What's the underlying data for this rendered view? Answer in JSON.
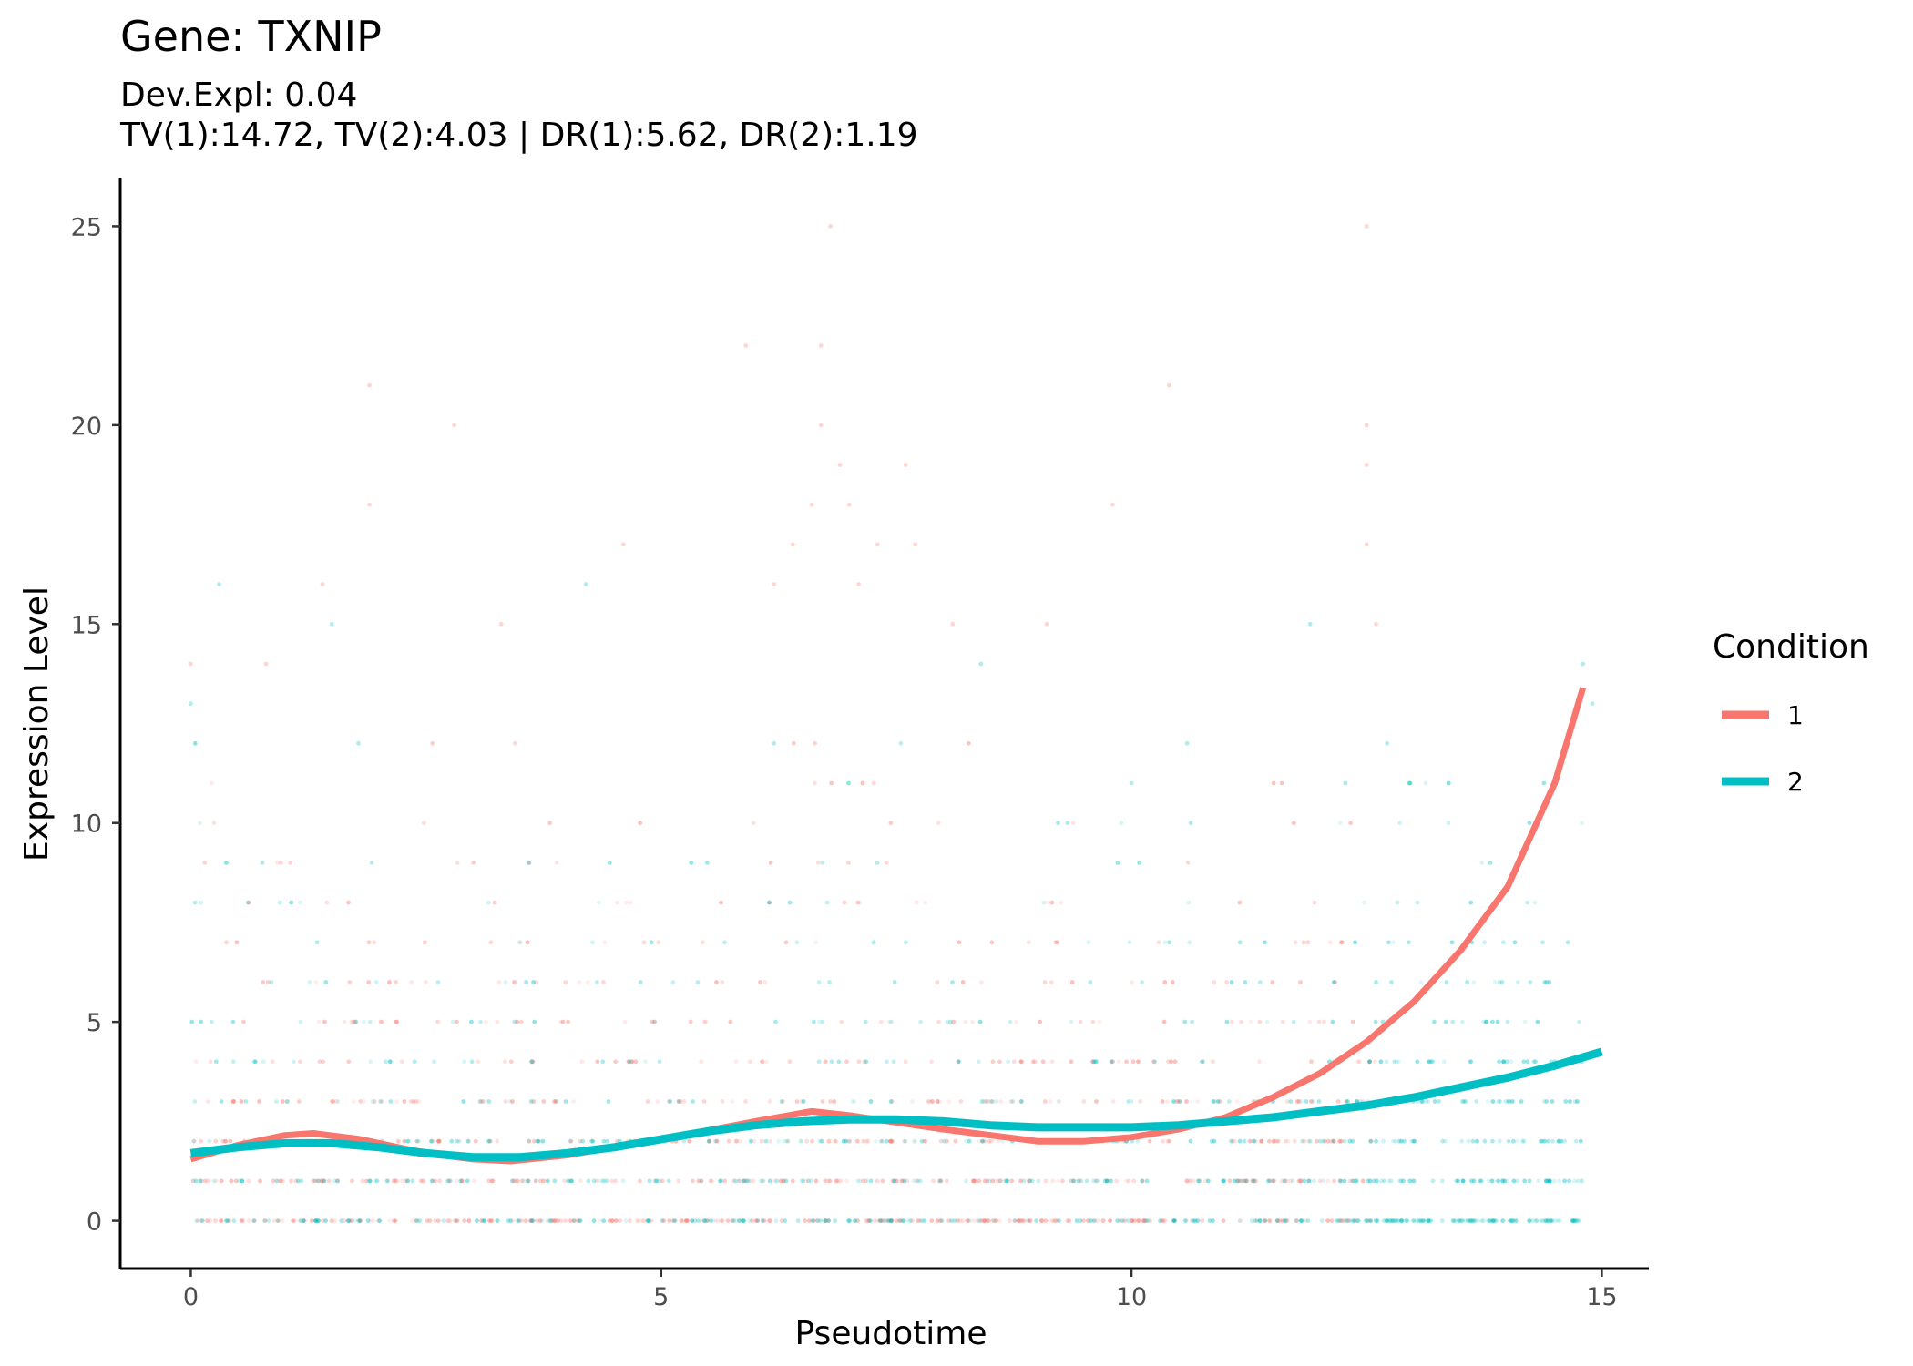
{
  "chart_data": {
    "type": "scatter",
    "title": "Gene: TXNIP",
    "subtitle_lines": [
      "Dev.Expl: 0.04",
      "TV(1):14.72, TV(2):4.03 | DR(1):5.62, DR(2):1.19"
    ],
    "xlabel": "Pseudotime",
    "ylabel": "Expression Level",
    "xlim": [
      -0.75,
      15.5
    ],
    "ylim": [
      -1.2,
      26.2
    ],
    "x_ticks": [
      0,
      5,
      10,
      15
    ],
    "y_ticks": [
      0,
      5,
      10,
      15,
      20,
      25
    ],
    "grid": false,
    "legend": {
      "title": "Condition",
      "position": "right",
      "entries": [
        {
          "label": "1",
          "color": "#F8766D"
        },
        {
          "label": "2",
          "color": "#00BFC4"
        }
      ]
    },
    "series": [
      {
        "name": "1",
        "color": "#F8766D",
        "fit_curve": {
          "x": [
            0.0,
            0.5,
            1.0,
            1.3,
            1.8,
            2.5,
            3.0,
            3.4,
            4.0,
            5.0,
            6.0,
            6.6,
            7.0,
            8.0,
            9.0,
            9.5,
            10.0,
            10.5,
            11.0,
            11.5,
            12.0,
            12.5,
            13.0,
            13.5,
            14.0,
            14.5,
            14.8
          ],
          "y": [
            1.55,
            1.9,
            2.15,
            2.2,
            2.05,
            1.7,
            1.55,
            1.5,
            1.65,
            2.05,
            2.5,
            2.75,
            2.65,
            2.3,
            2.0,
            2.0,
            2.1,
            2.3,
            2.6,
            3.1,
            3.7,
            4.5,
            5.5,
            6.8,
            8.4,
            11.0,
            13.4
          ]
        },
        "upper_outliers": [
          {
            "x": 0.0,
            "y": 14
          },
          {
            "x": 0.8,
            "y": 14
          },
          {
            "x": 1.4,
            "y": 16
          },
          {
            "x": 1.9,
            "y": 21
          },
          {
            "x": 1.9,
            "y": 18
          },
          {
            "x": 2.8,
            "y": 20
          },
          {
            "x": 3.3,
            "y": 15
          },
          {
            "x": 4.6,
            "y": 17
          },
          {
            "x": 5.9,
            "y": 22
          },
          {
            "x": 6.2,
            "y": 16
          },
          {
            "x": 6.4,
            "y": 17
          },
          {
            "x": 6.6,
            "y": 18
          },
          {
            "x": 6.7,
            "y": 20
          },
          {
            "x": 6.7,
            "y": 22
          },
          {
            "x": 6.8,
            "y": 25
          },
          {
            "x": 6.9,
            "y": 19
          },
          {
            "x": 7.0,
            "y": 18
          },
          {
            "x": 7.1,
            "y": 16
          },
          {
            "x": 7.3,
            "y": 17
          },
          {
            "x": 7.6,
            "y": 19
          },
          {
            "x": 7.7,
            "y": 17
          },
          {
            "x": 8.1,
            "y": 15
          },
          {
            "x": 9.1,
            "y": 15
          },
          {
            "x": 9.8,
            "y": 18
          },
          {
            "x": 10.4,
            "y": 21
          },
          {
            "x": 12.5,
            "y": 25
          },
          {
            "x": 12.5,
            "y": 20
          },
          {
            "x": 12.5,
            "y": 19
          },
          {
            "x": 12.5,
            "y": 17
          },
          {
            "x": 12.6,
            "y": 15
          }
        ]
      },
      {
        "name": "2",
        "color": "#00BFC4",
        "fit_curve": {
          "x": [
            0.0,
            0.5,
            1.0,
            1.5,
            2.0,
            2.5,
            3.0,
            3.5,
            4.0,
            4.5,
            5.0,
            5.5,
            6.0,
            6.5,
            7.0,
            7.5,
            8.0,
            8.5,
            9.0,
            9.5,
            10.0,
            10.5,
            11.0,
            11.5,
            12.0,
            12.5,
            13.0,
            13.5,
            14.0,
            14.5,
            15.0
          ],
          "y": [
            1.7,
            1.85,
            1.95,
            1.95,
            1.85,
            1.7,
            1.6,
            1.6,
            1.7,
            1.85,
            2.05,
            2.25,
            2.4,
            2.5,
            2.55,
            2.55,
            2.5,
            2.4,
            2.35,
            2.35,
            2.35,
            2.4,
            2.5,
            2.6,
            2.75,
            2.9,
            3.1,
            3.35,
            3.6,
            3.9,
            4.25
          ]
        },
        "upper_outliers": [
          {
            "x": 0.0,
            "y": 13
          },
          {
            "x": 0.3,
            "y": 16
          },
          {
            "x": 1.5,
            "y": 15
          },
          {
            "x": 4.2,
            "y": 16
          },
          {
            "x": 6.2,
            "y": 12
          },
          {
            "x": 8.4,
            "y": 14
          },
          {
            "x": 10.0,
            "y": 11
          },
          {
            "x": 11.9,
            "y": 15
          },
          {
            "x": 14.8,
            "y": 14
          },
          {
            "x": 14.9,
            "y": 13
          }
        ]
      }
    ]
  }
}
